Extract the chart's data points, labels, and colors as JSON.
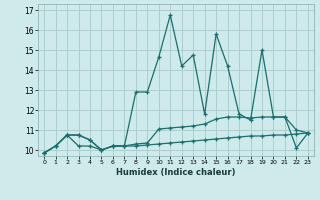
{
  "background_color": "#ceeaea",
  "grid_color": "#aacfcf",
  "line_color": "#1a6e6e",
  "xlabel": "Humidex (Indice chaleur)",
  "xlim": [
    -0.5,
    23.5
  ],
  "ylim": [
    9.7,
    17.3
  ],
  "xticks": [
    0,
    1,
    2,
    3,
    4,
    5,
    6,
    7,
    8,
    9,
    10,
    11,
    12,
    13,
    14,
    15,
    16,
    17,
    18,
    19,
    20,
    21,
    22,
    23
  ],
  "yticks": [
    10,
    11,
    12,
    13,
    14,
    15,
    16,
    17
  ],
  "line1_x": [
    0,
    1,
    2,
    3,
    4,
    5,
    6,
    7,
    8,
    9,
    10,
    11,
    12,
    13,
    14,
    15,
    16,
    17,
    18,
    19,
    20,
    21,
    22,
    23
  ],
  "line1_y": [
    9.85,
    10.2,
    10.75,
    10.2,
    10.2,
    10.0,
    10.2,
    10.2,
    10.2,
    10.25,
    10.3,
    10.35,
    10.4,
    10.45,
    10.5,
    10.55,
    10.6,
    10.65,
    10.7,
    10.7,
    10.75,
    10.75,
    10.8,
    10.85
  ],
  "line2_x": [
    0,
    1,
    2,
    3,
    4,
    5,
    6,
    7,
    8,
    9,
    10,
    11,
    12,
    13,
    14,
    15,
    16,
    17,
    18,
    19,
    20,
    21,
    22,
    23
  ],
  "line2_y": [
    9.85,
    10.2,
    10.75,
    10.75,
    10.5,
    10.0,
    10.2,
    10.2,
    12.9,
    12.9,
    14.65,
    16.75,
    14.2,
    14.75,
    11.8,
    15.8,
    14.2,
    11.8,
    11.5,
    15.0,
    11.65,
    11.65,
    10.1,
    10.85
  ],
  "line3_x": [
    0,
    1,
    2,
    3,
    4,
    5,
    6,
    7,
    8,
    9,
    10,
    11,
    12,
    13,
    14,
    15,
    16,
    17,
    18,
    19,
    20,
    21,
    22,
    23
  ],
  "line3_y": [
    9.85,
    10.2,
    10.75,
    10.75,
    10.5,
    10.0,
    10.2,
    10.2,
    10.3,
    10.35,
    11.05,
    11.1,
    11.15,
    11.2,
    11.3,
    11.55,
    11.65,
    11.65,
    11.6,
    11.65,
    11.65,
    11.65,
    11.0,
    10.85
  ]
}
